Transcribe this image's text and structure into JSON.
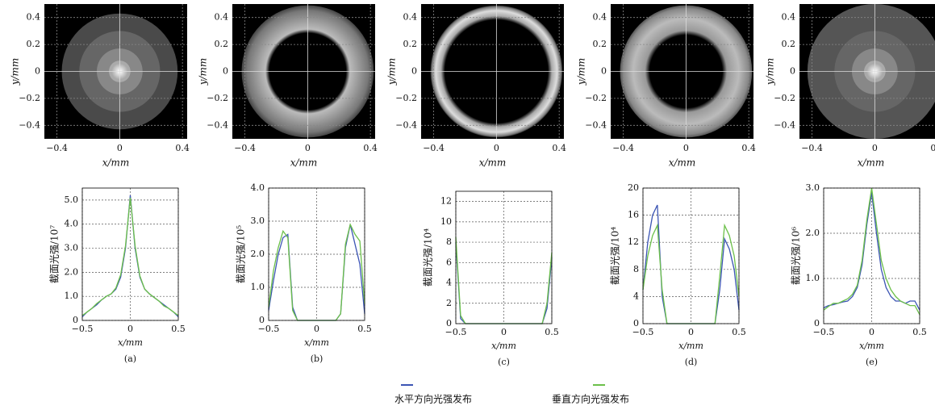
{
  "chart_data": [
    {
      "type": "image",
      "xlabel": "x/mm",
      "ylabel": "y/mm",
      "xlim": [
        -0.48,
        0.43
      ],
      "ylim": [
        -0.5,
        0.5
      ],
      "xticks": [
        {
          "value": -0.4,
          "label": "−0.4"
        },
        0,
        0.4
      ],
      "yticks": [
        0.4,
        0.2,
        0,
        {
          "value": -0.2,
          "label": "−0.2"
        },
        {
          "value": -0.4,
          "label": "−0.4"
        }
      ]
    },
    {
      "type": "image",
      "xlabel": "x/mm",
      "ylabel": "y/mm",
      "xlim": [
        -0.48,
        0.43
      ],
      "ylim": [
        -0.5,
        0.5
      ],
      "xticks": [
        {
          "value": -0.4,
          "label": "−0.4"
        },
        0,
        0.4
      ],
      "yticks": [
        0.4,
        0.2,
        0,
        {
          "value": -0.2,
          "label": "−0.2"
        },
        {
          "value": -0.4,
          "label": "−0.4"
        }
      ]
    },
    {
      "type": "image",
      "xlabel": "x/mm",
      "ylabel": "y/mm",
      "xlim": [
        -0.48,
        0.43
      ],
      "ylim": [
        -0.5,
        0.5
      ],
      "xticks": [
        {
          "value": -0.4,
          "label": "−0.4"
        },
        0,
        0.4
      ],
      "yticks": [
        0.4,
        0.2,
        0,
        {
          "value": -0.2,
          "label": "−0.2"
        },
        {
          "value": -0.4,
          "label": "−0.4"
        }
      ]
    },
    {
      "type": "image",
      "xlabel": "x/mm",
      "ylabel": "y/mm",
      "xlim": [
        -0.48,
        0.43
      ],
      "ylim": [
        -0.5,
        0.5
      ],
      "xticks": [
        {
          "value": -0.4,
          "label": "−0.4"
        },
        0,
        0.4
      ],
      "yticks": [
        0.4,
        0.2,
        0,
        {
          "value": -0.2,
          "label": "−0.2"
        },
        {
          "value": -0.4,
          "label": "−0.4"
        }
      ]
    },
    {
      "type": "image",
      "xlabel": "x/mm",
      "ylabel": "y/mm",
      "xlim": [
        -0.48,
        0.43
      ],
      "ylim": [
        -0.5,
        0.5
      ],
      "xticks": [
        {
          "value": -0.4,
          "label": "−0.4"
        },
        0,
        0.4
      ],
      "yticks": [
        0.4,
        0.2,
        0,
        {
          "value": -0.2,
          "label": "−0.2"
        },
        {
          "value": -0.4,
          "label": "−0.4"
        }
      ]
    },
    {
      "type": "line",
      "caption": "(a)",
      "xlabel": "x/mm",
      "ylabel": "截面光强/10⁷",
      "grid": true,
      "x": [
        -0.5,
        -0.45,
        -0.4,
        -0.35,
        -0.3,
        -0.25,
        -0.2,
        -0.15,
        -0.1,
        -0.05,
        0,
        0.05,
        0.1,
        0.15,
        0.2,
        0.25,
        0.3,
        0.35,
        0.4,
        0.45,
        0.5
      ],
      "xlim": [
        -0.5,
        0.5
      ],
      "xticks": [
        {
          "value": -0.5,
          "label": "−0.5"
        },
        0,
        0.5
      ],
      "ylim": [
        0,
        5.5
      ],
      "yticks": [
        0,
        {
          "value": 1,
          "label": "1.0"
        },
        {
          "value": 2,
          "label": "2.0"
        },
        {
          "value": 3,
          "label": "3.0"
        },
        {
          "value": 4,
          "label": "4.0"
        },
        {
          "value": 5,
          "label": "5.0"
        }
      ],
      "series": [
        {
          "name": "水平方向光强发布",
          "color": "#3c55b4",
          "values": [
            0.15,
            0.35,
            0.5,
            0.65,
            0.85,
            1.0,
            1.1,
            1.3,
            1.8,
            3.0,
            5.2,
            3.0,
            1.8,
            1.3,
            1.1,
            0.95,
            0.8,
            0.65,
            0.5,
            0.35,
            0.15
          ]
        },
        {
          "name": "垂直方向光强发布",
          "color": "#6cc04a",
          "values": [
            0.2,
            0.35,
            0.5,
            0.7,
            0.85,
            1.0,
            1.1,
            1.35,
            1.9,
            3.1,
            5.1,
            3.1,
            1.85,
            1.3,
            1.1,
            0.95,
            0.8,
            0.6,
            0.5,
            0.35,
            0.2
          ]
        }
      ]
    },
    {
      "type": "line",
      "caption": "(b)",
      "xlabel": "x/mm",
      "ylabel": "截面光强/10⁵",
      "grid": true,
      "x": [
        -0.5,
        -0.45,
        -0.4,
        -0.35,
        -0.3,
        -0.25,
        -0.2,
        -0.15,
        -0.1,
        -0.05,
        0,
        0.05,
        0.1,
        0.15,
        0.2,
        0.25,
        0.3,
        0.35,
        0.4,
        0.45,
        0.5
      ],
      "xlim": [
        -0.5,
        0.5
      ],
      "xticks": [
        {
          "value": -0.5,
          "label": "−0.5"
        },
        0,
        0.5
      ],
      "ylim": [
        0,
        4
      ],
      "yticks": [
        0,
        {
          "value": 1,
          "label": "1.0"
        },
        {
          "value": 2,
          "label": "2.0"
        },
        {
          "value": 3,
          "label": "3.0"
        },
        {
          "value": 4,
          "label": "4.0"
        }
      ],
      "series": [
        {
          "name": "水平方向光强发布",
          "color": "#3c55b4",
          "values": [
            0.3,
            1.2,
            2.0,
            2.5,
            2.6,
            0.4,
            0,
            0,
            0,
            0,
            0,
            0,
            0,
            0,
            0,
            0.2,
            2.2,
            2.9,
            2.3,
            1.7,
            0.2
          ]
        },
        {
          "name": "垂直方向光强发布",
          "color": "#6cc04a",
          "values": [
            0.4,
            1.5,
            2.2,
            2.7,
            2.5,
            0.3,
            0,
            0,
            0,
            0,
            0,
            0,
            0,
            0,
            0,
            0.2,
            2.3,
            2.9,
            2.6,
            2.4,
            0.5
          ]
        }
      ]
    },
    {
      "type": "line",
      "caption": "(c)",
      "xlabel": "x/mm",
      "ylabel": "截面光强/10⁴",
      "grid": true,
      "x": [
        -0.5,
        -0.45,
        -0.4,
        -0.35,
        -0.3,
        -0.25,
        -0.2,
        -0.15,
        -0.1,
        -0.05,
        0,
        0.05,
        0.1,
        0.15,
        0.2,
        0.25,
        0.3,
        0.35,
        0.4,
        0.45,
        0.5
      ],
      "xlim": [
        -0.5,
        0.5
      ],
      "xticks": [
        {
          "value": -0.5,
          "label": "−0.5"
        },
        0,
        0.5
      ],
      "ylim": [
        0,
        13
      ],
      "yticks": [
        0,
        2,
        4,
        6,
        8,
        10,
        12
      ],
      "series": [
        {
          "name": "水平方向光强发布",
          "color": "#3c55b4",
          "values": [
            8,
            0.5,
            0,
            0,
            0,
            0,
            0,
            0,
            0,
            0,
            0,
            0,
            0,
            0,
            0,
            0,
            0,
            0,
            0,
            1.5,
            6.5
          ]
        },
        {
          "name": "垂直方向光强发布",
          "color": "#6cc04a",
          "values": [
            8.5,
            0.8,
            0,
            0,
            0,
            0,
            0,
            0,
            0,
            0,
            0,
            0,
            0,
            0,
            0,
            0,
            0,
            0,
            0,
            2,
            7
          ]
        }
      ]
    },
    {
      "type": "line",
      "caption": "(d)",
      "xlabel": "x/mm",
      "ylabel": "截面光强/10⁴",
      "grid": true,
      "x": [
        -0.5,
        -0.45,
        -0.4,
        -0.35,
        -0.3,
        -0.25,
        -0.2,
        -0.15,
        -0.1,
        -0.05,
        0,
        0.05,
        0.1,
        0.15,
        0.2,
        0.25,
        0.3,
        0.35,
        0.4,
        0.45,
        0.5
      ],
      "xlim": [
        -0.5,
        0.5
      ],
      "xticks": [
        {
          "value": -0.5,
          "label": "−0.5"
        },
        0,
        0.5
      ],
      "ylim": [
        0,
        20
      ],
      "yticks": [
        0,
        4,
        8,
        12,
        16,
        20
      ],
      "series": [
        {
          "name": "水平方向光强发布",
          "color": "#3c55b4",
          "values": [
            5,
            12,
            16,
            17.5,
            4,
            0,
            0,
            0,
            0,
            0,
            0,
            0,
            0,
            0,
            0,
            0,
            5,
            12.5,
            11,
            8,
            2
          ]
        },
        {
          "name": "垂直方向光强发布",
          "color": "#6cc04a",
          "values": [
            5,
            10,
            13,
            14.5,
            5,
            0,
            0,
            0,
            0,
            0,
            0,
            0,
            0,
            0,
            0,
            0,
            7,
            14.5,
            13,
            10,
            4
          ]
        }
      ]
    },
    {
      "type": "line",
      "caption": "(e)",
      "xlabel": "x/mm",
      "ylabel": "截面光强/10⁶",
      "grid": true,
      "x": [
        -0.5,
        -0.45,
        -0.4,
        -0.35,
        -0.3,
        -0.25,
        -0.2,
        -0.15,
        -0.1,
        -0.05,
        0,
        0.05,
        0.1,
        0.15,
        0.2,
        0.25,
        0.3,
        0.35,
        0.4,
        0.45,
        0.5
      ],
      "xlim": [
        -0.5,
        0.5
      ],
      "xticks": [
        {
          "value": -0.5,
          "label": "−0.5"
        },
        0,
        0.5
      ],
      "ylim": [
        0,
        3
      ],
      "yticks": [
        0,
        {
          "value": 1,
          "label": "1.0"
        },
        {
          "value": 2,
          "label": "2.0"
        },
        {
          "value": 3,
          "label": "3.0"
        }
      ],
      "series": [
        {
          "name": "水平方向光强发布",
          "color": "#3c55b4",
          "values": [
            0.35,
            0.4,
            0.42,
            0.45,
            0.48,
            0.5,
            0.6,
            0.8,
            1.3,
            2.2,
            2.9,
            2.0,
            1.2,
            0.8,
            0.6,
            0.5,
            0.5,
            0.45,
            0.5,
            0.5,
            0.3
          ]
        },
        {
          "name": "垂直方向光强发布",
          "color": "#6cc04a",
          "values": [
            0.3,
            0.38,
            0.45,
            0.45,
            0.5,
            0.55,
            0.65,
            0.85,
            1.4,
            2.3,
            3.0,
            2.2,
            1.4,
            1.0,
            0.75,
            0.6,
            0.5,
            0.45,
            0.4,
            0.4,
            0.2
          ]
        }
      ]
    }
  ]
}
